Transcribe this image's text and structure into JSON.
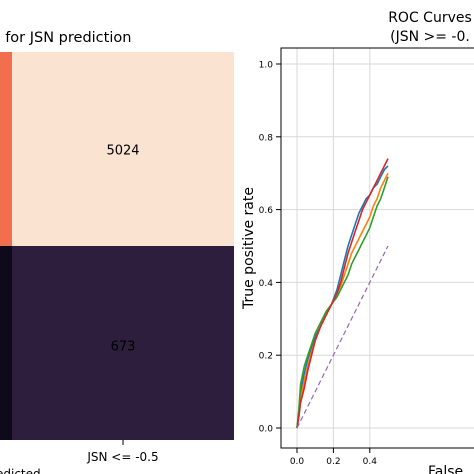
{
  "chart_data": [
    {
      "type": "heatmap",
      "title_visible": "x for JSN prediction",
      "xtick_label": "JSN <= -0.5",
      "xlabel_visible": "edicted",
      "cells": [
        {
          "value": 5024,
          "color": "#fbe3d1",
          "label_color": "#222222"
        },
        {
          "value": 673,
          "color": "#2d1e3d",
          "label_color": "#ffffff"
        }
      ],
      "left_partial_cells": [
        {
          "color": "#f26e4f"
        },
        {
          "color": "#0e0a1c"
        }
      ]
    },
    {
      "type": "line",
      "title_lines": [
        "ROC Curves",
        "(JSN >= -0."
      ],
      "xlabel_visible": "False",
      "ylabel": "True positive rate",
      "xlim": [
        0,
        1
      ],
      "ylim": [
        0,
        1
      ],
      "xticks": [
        0.0,
        0.2,
        0.4
      ],
      "xtick_labels": [
        "0.0",
        "0.2",
        "0.4"
      ],
      "yticks": [
        0.0,
        0.2,
        0.4,
        0.6,
        0.8,
        1.0
      ],
      "ytick_labels": [
        "0.0",
        "0.2",
        "0.4",
        "0.6",
        "0.8",
        "1.0"
      ],
      "grid": true,
      "series": [
        {
          "color": "#1f77b4",
          "x": [
            0,
            0.01,
            0.02,
            0.04,
            0.06,
            0.08,
            0.1,
            0.13,
            0.16,
            0.19,
            0.22,
            0.24,
            0.26,
            0.28,
            0.3,
            0.32,
            0.34,
            0.36,
            0.38,
            0.4,
            0.42,
            0.44,
            0.46,
            0.48,
            0.5
          ],
          "y": [
            0,
            0.04,
            0.1,
            0.15,
            0.19,
            0.22,
            0.25,
            0.28,
            0.31,
            0.34,
            0.38,
            0.42,
            0.46,
            0.5,
            0.53,
            0.56,
            0.59,
            0.61,
            0.63,
            0.64,
            0.66,
            0.67,
            0.69,
            0.71,
            0.72
          ]
        },
        {
          "color": "#ff7f0e",
          "x": [
            0,
            0.01,
            0.02,
            0.04,
            0.06,
            0.08,
            0.1,
            0.13,
            0.16,
            0.19,
            0.22,
            0.24,
            0.26,
            0.28,
            0.3,
            0.32,
            0.34,
            0.36,
            0.38,
            0.4,
            0.42,
            0.44,
            0.46,
            0.48,
            0.5
          ],
          "y": [
            0,
            0.03,
            0.08,
            0.13,
            0.17,
            0.21,
            0.24,
            0.28,
            0.31,
            0.34,
            0.37,
            0.39,
            0.42,
            0.45,
            0.48,
            0.5,
            0.52,
            0.54,
            0.56,
            0.58,
            0.61,
            0.63,
            0.66,
            0.68,
            0.7
          ]
        },
        {
          "color": "#2ca02c",
          "x": [
            0,
            0.01,
            0.02,
            0.04,
            0.06,
            0.08,
            0.1,
            0.13,
            0.16,
            0.19,
            0.22,
            0.24,
            0.26,
            0.28,
            0.3,
            0.32,
            0.34,
            0.36,
            0.38,
            0.4,
            0.42,
            0.44,
            0.46,
            0.48,
            0.5
          ],
          "y": [
            0,
            0.05,
            0.12,
            0.17,
            0.2,
            0.23,
            0.26,
            0.29,
            0.32,
            0.34,
            0.36,
            0.38,
            0.4,
            0.42,
            0.45,
            0.47,
            0.49,
            0.51,
            0.53,
            0.55,
            0.58,
            0.61,
            0.63,
            0.66,
            0.69
          ]
        },
        {
          "color": "#d62728",
          "x": [
            0,
            0.01,
            0.02,
            0.04,
            0.06,
            0.08,
            0.1,
            0.13,
            0.16,
            0.19,
            0.22,
            0.24,
            0.26,
            0.28,
            0.3,
            0.32,
            0.34,
            0.36,
            0.38,
            0.4,
            0.42,
            0.44,
            0.46,
            0.48,
            0.5
          ],
          "y": [
            0,
            0.03,
            0.07,
            0.11,
            0.16,
            0.2,
            0.24,
            0.28,
            0.31,
            0.34,
            0.37,
            0.4,
            0.44,
            0.48,
            0.51,
            0.54,
            0.57,
            0.6,
            0.62,
            0.64,
            0.66,
            0.68,
            0.7,
            0.72,
            0.74
          ]
        },
        {
          "color": "#9467bd",
          "dashed": true,
          "x": [
            0,
            0.5
          ],
          "y": [
            0,
            0.5
          ]
        }
      ]
    }
  ]
}
